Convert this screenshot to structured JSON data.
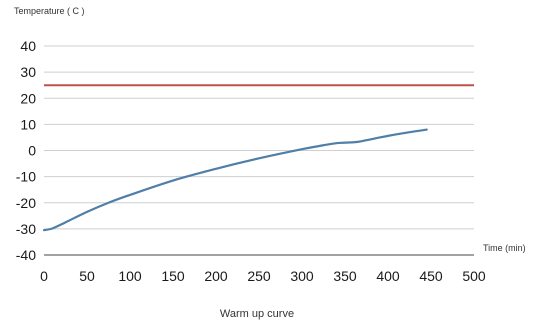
{
  "chart_data": {
    "type": "line",
    "title": "",
    "caption": "Warm up curve",
    "xlabel": "Time (min)",
    "ylabel": "Temperature ( C )",
    "xlim": [
      0,
      500
    ],
    "ylim": [
      -40,
      40
    ],
    "x_ticks": [
      0,
      50,
      100,
      150,
      200,
      250,
      300,
      350,
      400,
      450,
      500
    ],
    "y_ticks": [
      40,
      30,
      20,
      10,
      0,
      -10,
      -20,
      -30,
      -40
    ],
    "grid": "horizontal",
    "reference_line": {
      "y": 25,
      "color": "#c0504d"
    },
    "series": [
      {
        "color": "#4f7fa8",
        "x": [
          0,
          10,
          25,
          50,
          75,
          100,
          150,
          200,
          250,
          300,
          325,
          340,
          350,
          365,
          380,
          400,
          425,
          445
        ],
        "y": [
          -30.5,
          -29.8,
          -27.5,
          -23.5,
          -20,
          -17,
          -11.5,
          -7,
          -3,
          0.5,
          2,
          2.8,
          3,
          3.3,
          4.3,
          5.6,
          7,
          8
        ]
      }
    ]
  }
}
